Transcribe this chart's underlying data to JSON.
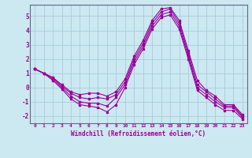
{
  "line1": [
    1.3,
    1.0,
    0.7,
    0.2,
    -0.3,
    -0.5,
    -0.4,
    -0.4,
    -0.6,
    -0.3,
    0.6,
    2.2,
    3.3,
    4.7,
    5.5,
    5.6,
    4.7,
    2.6,
    0.5,
    -0.2,
    -0.6,
    -1.2,
    -1.2,
    -1.9
  ],
  "line2": [
    1.3,
    1.0,
    0.7,
    0.1,
    -0.4,
    -0.7,
    -0.8,
    -0.7,
    -0.8,
    -0.5,
    0.4,
    2.0,
    3.1,
    4.5,
    5.3,
    5.5,
    4.5,
    2.4,
    0.2,
    -0.3,
    -0.8,
    -1.3,
    -1.3,
    -2.0
  ],
  "line3": [
    1.3,
    1.0,
    0.6,
    0.0,
    -0.6,
    -1.0,
    -1.1,
    -1.1,
    -1.3,
    -0.7,
    0.2,
    1.8,
    2.9,
    4.3,
    5.1,
    5.3,
    4.3,
    2.2,
    0.0,
    -0.5,
    -1.0,
    -1.4,
    -1.4,
    -2.1
  ],
  "line4": [
    1.3,
    1.0,
    0.5,
    -0.1,
    -0.8,
    -1.2,
    -1.3,
    -1.4,
    -1.7,
    -1.2,
    0.0,
    1.6,
    2.7,
    4.1,
    4.9,
    5.1,
    4.1,
    2.0,
    -0.2,
    -0.7,
    -1.2,
    -1.6,
    -1.6,
    -2.2
  ],
  "hours": [
    0,
    1,
    2,
    3,
    4,
    5,
    6,
    7,
    8,
    9,
    10,
    11,
    12,
    13,
    14,
    15,
    16,
    17,
    18,
    19,
    20,
    21,
    22,
    23
  ],
  "color": "#990099",
  "bg_color": "#cce8f0",
  "grid_color": "#aaccdd",
  "xlabel": "Windchill (Refroidissement éolien,°C)",
  "ylim": [
    -2.5,
    5.8
  ],
  "xlim": [
    -0.5,
    23.5
  ],
  "yticks": [
    -2,
    -1,
    0,
    1,
    2,
    3,
    4,
    5
  ],
  "xticks": [
    0,
    1,
    2,
    3,
    4,
    5,
    6,
    7,
    8,
    9,
    10,
    11,
    12,
    13,
    14,
    15,
    16,
    17,
    18,
    19,
    20,
    21,
    22,
    23
  ]
}
